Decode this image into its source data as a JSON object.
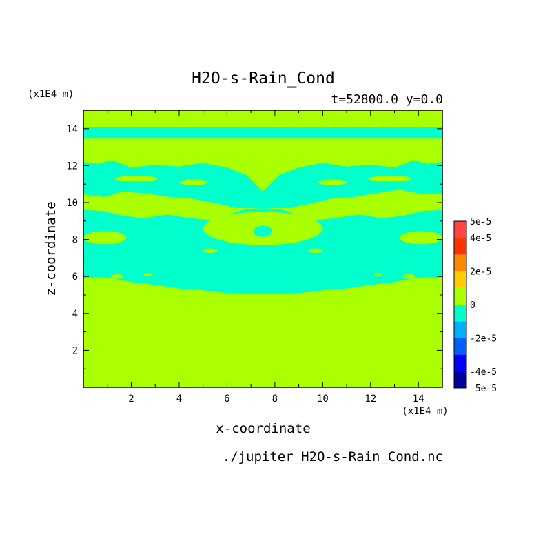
{
  "chart_data": {
    "type": "heatmap",
    "title": "H2O-s-Rain_Cond",
    "subtitle": "t=52800.0 y=0.0",
    "xlabel": "x-coordinate",
    "ylabel": "z-coordinate",
    "x_unit": "(x1E4 m)",
    "y_unit": "(x1E4 m)",
    "file_label": "./jupiter_H2O-s-Rain_Cond.nc",
    "xlim": [
      0.0,
      15.0
    ],
    "ylim": [
      0.0,
      15.0
    ],
    "x_ticks": [
      2,
      4,
      6,
      8,
      10,
      12,
      14
    ],
    "y_ticks": [
      2,
      4,
      6,
      8,
      10,
      12,
      14
    ],
    "colorbar": {
      "range": [
        -5e-05,
        5e-05
      ],
      "levels": [
        -5e-05,
        -4e-05,
        -3e-05,
        -2e-05,
        -1e-05,
        0,
        1e-05,
        2e-05,
        3e-05,
        4e-05,
        5e-05
      ],
      "colors": [
        "#0000a0",
        "#0000ff",
        "#0060ff",
        "#00b0ff",
        "#00ffcc",
        "#aaff00",
        "#ffcc00",
        "#ff8800",
        "#ff3300",
        "#ff4444"
      ],
      "labels": [
        {
          "value": 5e-05,
          "text": "5e-5"
        },
        {
          "value": 4e-05,
          "text": "4e-5"
        },
        {
          "value": 2e-05,
          "text": "2e-5"
        },
        {
          "value": 0,
          "text": "0"
        },
        {
          "value": -2e-05,
          "text": "-2e-5"
        },
        {
          "value": -4e-05,
          "text": "-4e-5"
        },
        {
          "value": -5e-05,
          "text": "-5e-5"
        }
      ]
    },
    "field_colors": {
      "background": "#aaff00",
      "negative": "#00ffcc"
    },
    "negative_regions": [
      {
        "kind": "band",
        "points": [
          [
            0,
            13.5
          ],
          [
            15,
            13.5
          ],
          [
            15,
            14.1
          ],
          [
            0,
            14.1
          ]
        ]
      },
      {
        "kind": "band",
        "points": [
          [
            0,
            12.2
          ],
          [
            0.6,
            12.1
          ],
          [
            1.2,
            12.3
          ],
          [
            2,
            11.9
          ],
          [
            3,
            12.05
          ],
          [
            4,
            11.95
          ],
          [
            5,
            12.15
          ],
          [
            6,
            11.9
          ],
          [
            6.8,
            11.5
          ],
          [
            7.5,
            10.6
          ],
          [
            8.2,
            11.5
          ],
          [
            9,
            11.9
          ],
          [
            10,
            12.15
          ],
          [
            11,
            11.95
          ],
          [
            12,
            12.05
          ],
          [
            13,
            11.9
          ],
          [
            13.8,
            12.3
          ],
          [
            14.4,
            12.1
          ],
          [
            15,
            12.2
          ],
          [
            15,
            10.45
          ],
          [
            14.2,
            10.45
          ],
          [
            13.2,
            10.7
          ],
          [
            12.2,
            10.5
          ],
          [
            11.3,
            10.3
          ],
          [
            10.3,
            10.2
          ],
          [
            9.3,
            9.9
          ],
          [
            8.6,
            9.7
          ],
          [
            7.5,
            9.7
          ],
          [
            6.4,
            9.7
          ],
          [
            5.6,
            9.95
          ],
          [
            4.6,
            10.2
          ],
          [
            3.6,
            10.3
          ],
          [
            2.6,
            10.5
          ],
          [
            1.6,
            10.6
          ],
          [
            0.9,
            10.3
          ],
          [
            0,
            10.45
          ]
        ]
      },
      {
        "kind": "band",
        "points": [
          [
            0,
            9.6
          ],
          [
            0.8,
            9.55
          ],
          [
            1.6,
            9.3
          ],
          [
            2.5,
            9.15
          ],
          [
            3.5,
            9.35
          ],
          [
            4.5,
            9.15
          ],
          [
            5.4,
            9.05
          ],
          [
            6.3,
            9.45
          ],
          [
            6.8,
            9.65
          ],
          [
            7.5,
            9.7
          ],
          [
            8.2,
            9.65
          ],
          [
            8.7,
            9.45
          ],
          [
            9.6,
            9.05
          ],
          [
            10.5,
            9.15
          ],
          [
            11.5,
            9.35
          ],
          [
            12.5,
            9.15
          ],
          [
            13.4,
            9.3
          ],
          [
            14.2,
            9.55
          ],
          [
            15,
            9.6
          ],
          [
            15,
            5.9
          ],
          [
            14.4,
            5.95
          ],
          [
            13.8,
            5.9
          ],
          [
            13,
            5.7
          ],
          [
            12,
            5.55
          ],
          [
            11,
            5.35
          ],
          [
            10,
            5.25
          ],
          [
            9,
            5.1
          ],
          [
            8,
            5.05
          ],
          [
            7.5,
            5.05
          ],
          [
            7,
            5.05
          ],
          [
            6,
            5.1
          ],
          [
            5,
            5.25
          ],
          [
            4,
            5.35
          ],
          [
            3,
            5.55
          ],
          [
            2,
            5.7
          ],
          [
            1.2,
            5.9
          ],
          [
            0.6,
            5.95
          ],
          [
            0,
            5.9
          ]
        ]
      },
      {
        "kind": "island",
        "points": [
          [
            7.5,
            7.3
          ],
          [
            8.1,
            7.4
          ],
          [
            8.4,
            7.6
          ],
          [
            9,
            7.8
          ],
          [
            9.6,
            8.1
          ],
          [
            10.1,
            8.4
          ],
          [
            10.5,
            8.6
          ],
          [
            11,
            8.3
          ],
          [
            10.6,
            8.0
          ],
          [
            10.1,
            7.6
          ],
          [
            9.5,
            7.2
          ],
          [
            8.9,
            6.8
          ],
          [
            8.3,
            6.4
          ],
          [
            7.5,
            6.2
          ],
          [
            6.7,
            6.4
          ],
          [
            6.1,
            6.8
          ],
          [
            5.5,
            7.2
          ],
          [
            4.9,
            7.6
          ],
          [
            4.4,
            8.0
          ],
          [
            4.0,
            8.3
          ],
          [
            4.5,
            8.6
          ],
          [
            4.9,
            8.4
          ],
          [
            5.4,
            8.1
          ],
          [
            6,
            7.8
          ],
          [
            6.6,
            7.6
          ],
          [
            6.9,
            7.4
          ]
        ]
      },
      {
        "kind": "island",
        "points": [
          [
            6.2,
            9.1
          ],
          [
            7,
            9.25
          ],
          [
            7.5,
            9.3
          ],
          [
            8,
            9.25
          ],
          [
            8.8,
            9.1
          ],
          [
            8.3,
            9.0
          ],
          [
            7.5,
            8.95
          ],
          [
            6.7,
            9.0
          ]
        ]
      }
    ],
    "positive_islands": [
      {
        "kind": "ellipse",
        "cx": 7.5,
        "cy": 8.6,
        "rx": 2.5,
        "ry": 0.9
      },
      {
        "kind": "ellipse",
        "cx": 7.5,
        "cy": 8.45,
        "rx": 0.4,
        "ry": 0.3,
        "negative": true
      },
      {
        "kind": "ellipse",
        "cx": 0.9,
        "cy": 8.1,
        "rx": 0.9,
        "ry": 0.35
      },
      {
        "kind": "ellipse",
        "cx": 14.1,
        "cy": 8.1,
        "rx": 0.9,
        "ry": 0.35
      },
      {
        "kind": "ellipse",
        "cx": 5.1,
        "cy": 9.6,
        "rx": 0.9,
        "ry": 0.3
      },
      {
        "kind": "ellipse",
        "cx": 9.9,
        "cy": 9.6,
        "rx": 0.9,
        "ry": 0.3
      },
      {
        "kind": "ellipse",
        "cx": 2.8,
        "cy": 9.8,
        "rx": 0.35,
        "ry": 0.15
      },
      {
        "kind": "ellipse",
        "cx": 12.2,
        "cy": 9.8,
        "rx": 0.35,
        "ry": 0.15
      },
      {
        "kind": "ellipse",
        "cx": 2.2,
        "cy": 11.3,
        "rx": 0.9,
        "ry": 0.15
      },
      {
        "kind": "ellipse",
        "cx": 12.8,
        "cy": 11.3,
        "rx": 0.9,
        "ry": 0.15
      },
      {
        "kind": "ellipse",
        "cx": 4.6,
        "cy": 11.1,
        "rx": 0.6,
        "ry": 0.15
      },
      {
        "kind": "ellipse",
        "cx": 10.4,
        "cy": 11.1,
        "rx": 0.6,
        "ry": 0.15
      },
      {
        "kind": "ellipse",
        "cx": 3.0,
        "cy": 7.5,
        "rx": 0.4,
        "ry": 0.15,
        "negative": true
      },
      {
        "kind": "ellipse",
        "cx": 12.0,
        "cy": 7.5,
        "rx": 0.4,
        "ry": 0.15,
        "negative": true
      },
      {
        "kind": "ellipse",
        "cx": 5.3,
        "cy": 7.4,
        "rx": 0.3,
        "ry": 0.12
      },
      {
        "kind": "ellipse",
        "cx": 9.7,
        "cy": 7.4,
        "rx": 0.3,
        "ry": 0.12
      },
      {
        "kind": "ellipse",
        "cx": 2.7,
        "cy": 6.1,
        "rx": 0.2,
        "ry": 0.1
      },
      {
        "kind": "ellipse",
        "cx": 12.3,
        "cy": 6.1,
        "rx": 0.2,
        "ry": 0.1
      },
      {
        "kind": "ellipse",
        "cx": 1.4,
        "cy": 6.0,
        "rx": 0.25,
        "ry": 0.12
      },
      {
        "kind": "ellipse",
        "cx": 13.6,
        "cy": 6.0,
        "rx": 0.25,
        "ry": 0.12
      }
    ]
  }
}
